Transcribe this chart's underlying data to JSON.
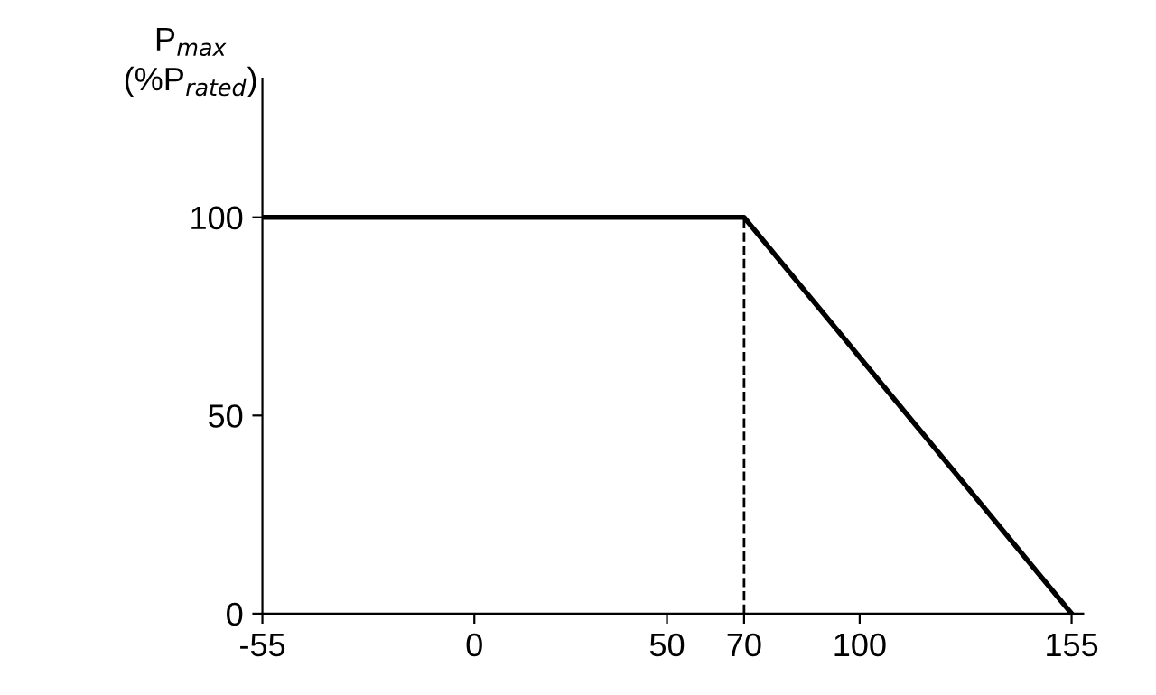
{
  "chart_data": {
    "type": "line",
    "ylabel": "P$_{max}$\n(%P$_{rated}$)",
    "x": [
      -55,
      70,
      155
    ],
    "series": [
      {
        "color": "#000000",
        "values": [
          100,
          100,
          0
        ]
      }
    ],
    "xlim": [
      -55,
      158
    ],
    "ylim": [
      0,
      135
    ],
    "xticks": [
      -55,
      0,
      50,
      70,
      100,
      155
    ],
    "yticks": [
      0,
      50,
      100
    ],
    "ref_lines": [
      {
        "axis": "x",
        "value": 70,
        "line_style": "dashed",
        "color": "#000000"
      }
    ],
    "grid": false,
    "legend": false,
    "marker": "none",
    "line_style": "solid"
  }
}
